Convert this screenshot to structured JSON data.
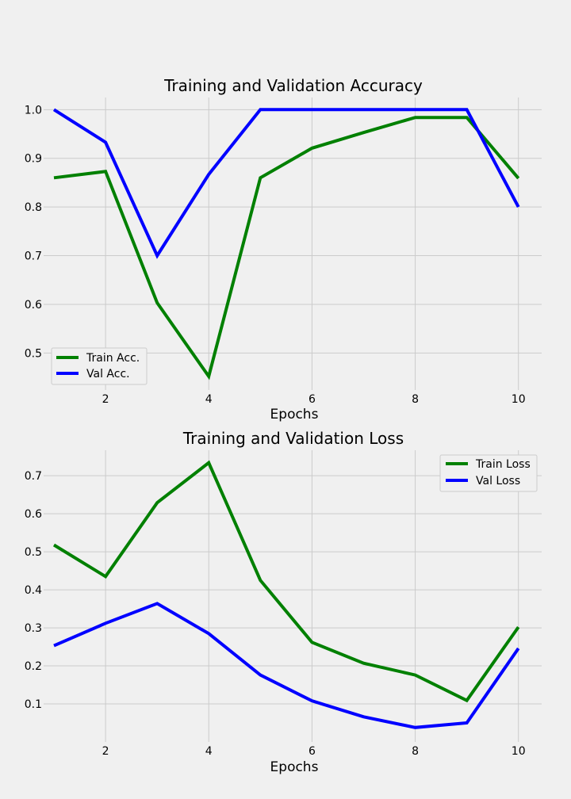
{
  "chart_data": [
    {
      "type": "line",
      "title": "Training and Validation Accuracy",
      "xlabel": "Epochs",
      "ylabel": "",
      "x": [
        1,
        2,
        3,
        4,
        5,
        6,
        7,
        8,
        9,
        10
      ],
      "xlim": [
        0.8,
        10.45
      ],
      "ylim": [
        0.424,
        1.025
      ],
      "xticks": [
        2,
        4,
        6,
        8,
        10
      ],
      "xtick_labels": [
        "2",
        "4",
        "6",
        "8",
        "10"
      ],
      "yticks": [
        0.5,
        0.6,
        0.7,
        0.8,
        0.9,
        1.0
      ],
      "ytick_labels": [
        "0.5",
        "0.6",
        "0.7",
        "0.8",
        "0.9",
        "1.0"
      ],
      "grid": true,
      "legend_position": "lower-left",
      "series": [
        {
          "name": "Train Acc.",
          "color": "#008000",
          "values": [
            0.86,
            0.873,
            0.603,
            0.452,
            0.86,
            0.921,
            0.953,
            0.984,
            0.984,
            0.859
          ]
        },
        {
          "name": "Val Acc.",
          "color": "#0000ff",
          "values": [
            1.0,
            0.933,
            0.7,
            0.867,
            1.0,
            1.0,
            1.0,
            1.0,
            1.0,
            0.8
          ]
        }
      ]
    },
    {
      "type": "line",
      "title": "Training and Validation Loss",
      "xlabel": "Epochs",
      "ylabel": "",
      "x": [
        1,
        2,
        3,
        4,
        5,
        6,
        7,
        8,
        9,
        10
      ],
      "xlim": [
        0.8,
        10.45
      ],
      "ylim": [
        0.0,
        0.767
      ],
      "xticks": [
        2,
        4,
        6,
        8,
        10
      ],
      "xtick_labels": [
        "2",
        "4",
        "6",
        "8",
        "10"
      ],
      "yticks": [
        0.1,
        0.2,
        0.3,
        0.4,
        0.5,
        0.6,
        0.7
      ],
      "ytick_labels": [
        "0.1",
        "0.2",
        "0.3",
        "0.4",
        "0.5",
        "0.6",
        "0.7"
      ],
      "grid": true,
      "legend_position": "upper-right",
      "series": [
        {
          "name": "Train Loss",
          "color": "#008000",
          "values": [
            0.518,
            0.435,
            0.629,
            0.734,
            0.425,
            0.262,
            0.207,
            0.176,
            0.109,
            0.302
          ]
        },
        {
          "name": "Val Loss",
          "color": "#0000ff",
          "values": [
            0.253,
            0.312,
            0.364,
            0.285,
            0.176,
            0.108,
            0.066,
            0.038,
            0.05,
            0.246
          ]
        }
      ]
    }
  ]
}
